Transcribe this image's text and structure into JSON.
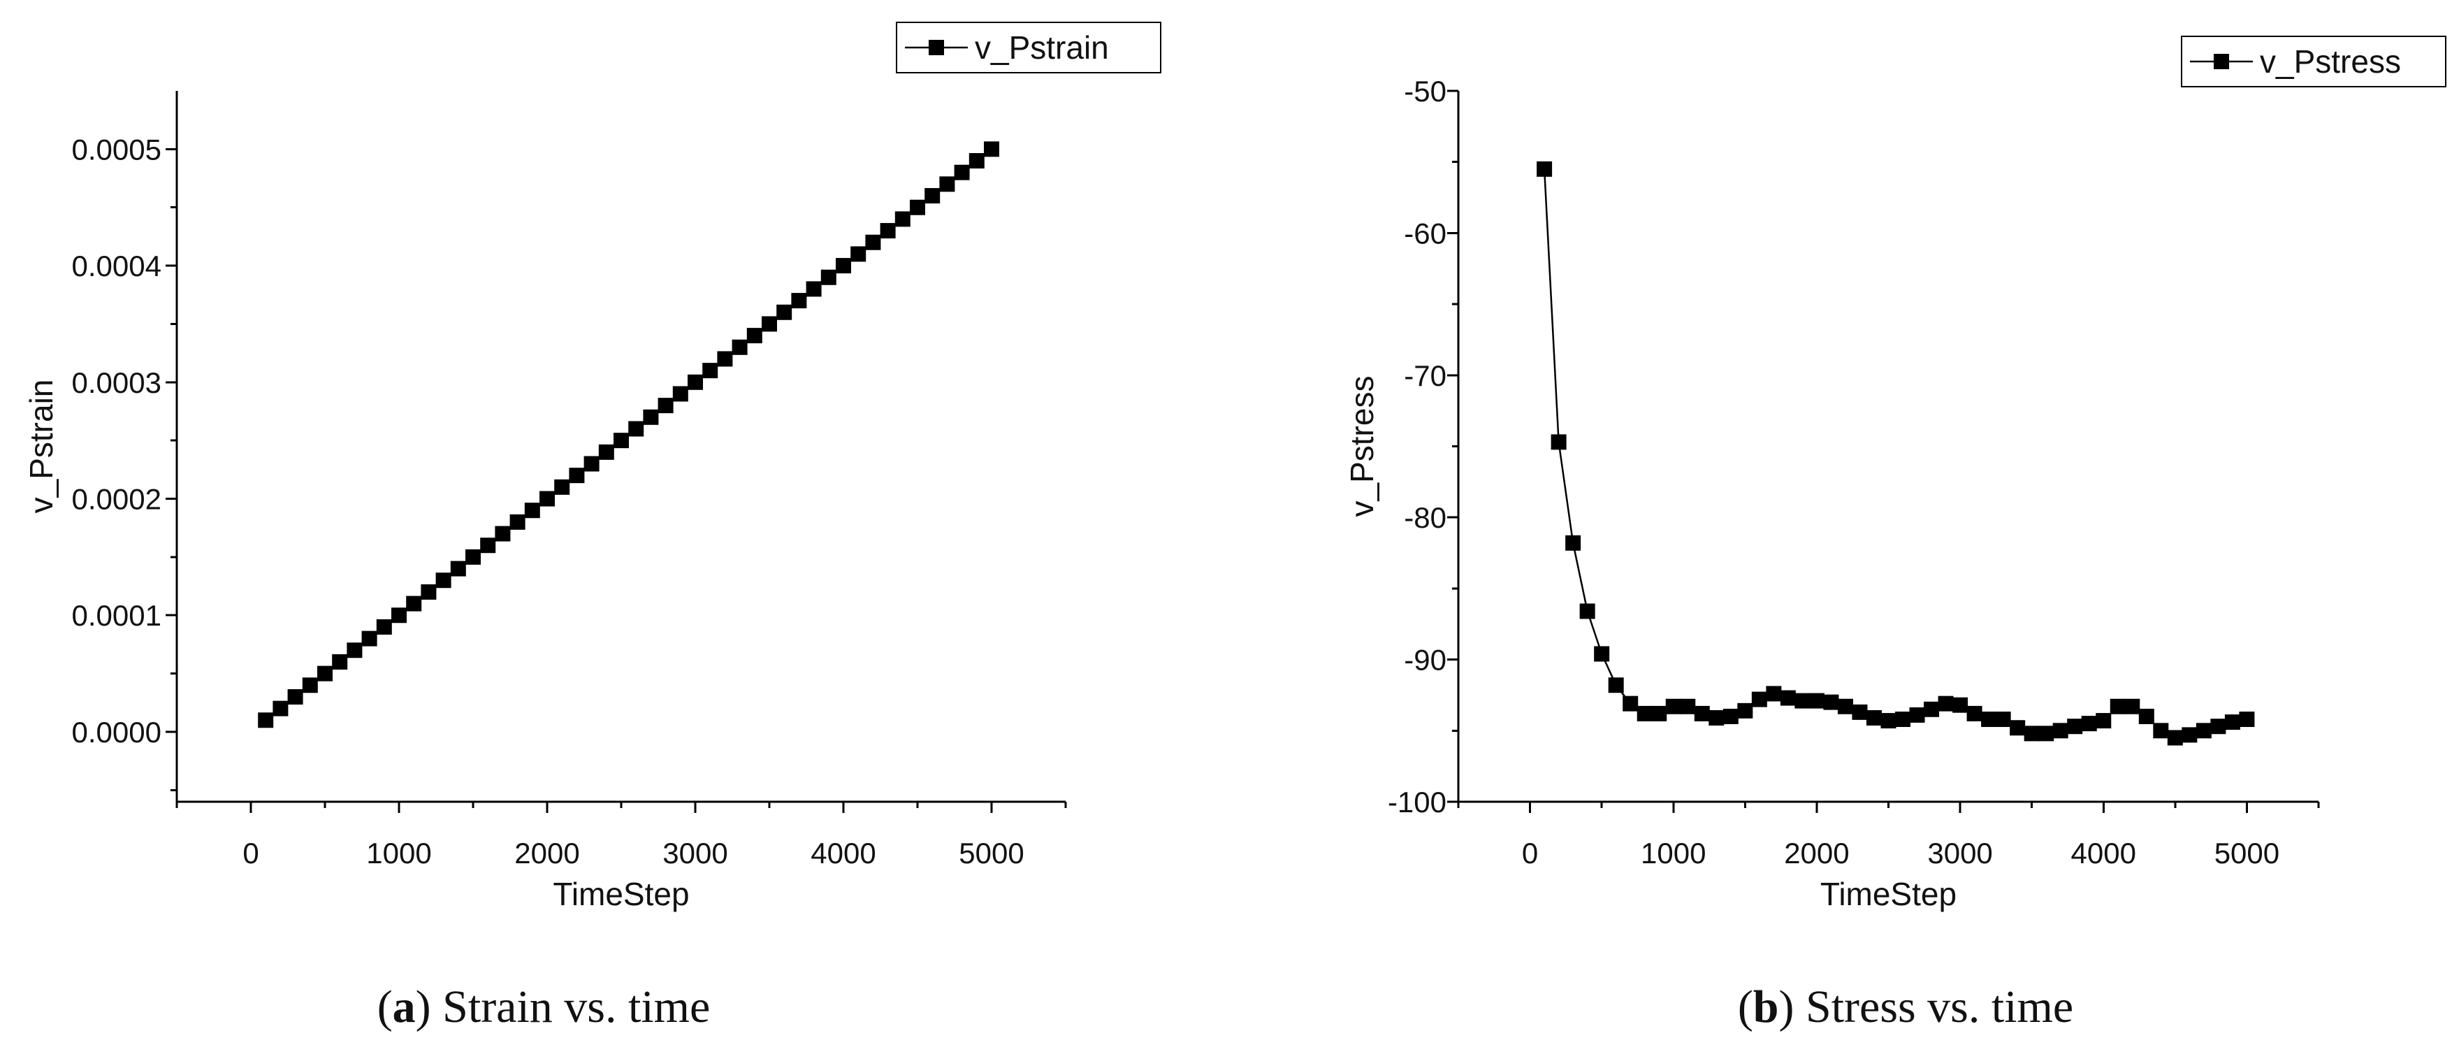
{
  "chart_data": [
    {
      "type": "line",
      "marker": "square",
      "xlabel": "TimeStep",
      "ylabel": "v_Pstrain",
      "legend": "v_Pstrain",
      "legend_position": "top-right",
      "xlim": [
        -500,
        5500
      ],
      "ylim": [
        -6e-05,
        0.00055
      ],
      "xticks": [
        0,
        1000,
        2000,
        3000,
        4000,
        5000
      ],
      "xtick_labels": [
        "0",
        "1000",
        "2000",
        "3000",
        "4000",
        "5000"
      ],
      "yticks": [
        0,
        0.0001,
        0.0002,
        0.0003,
        0.0004,
        0.0005
      ],
      "ytick_labels": [
        "0.0000",
        "0.0001",
        "0.0002",
        "0.0003",
        "0.0004",
        "0.0005"
      ],
      "caption_letter": "a",
      "caption_open": "(",
      "caption_close": ")",
      "caption_text": " Strain vs. time",
      "series": [
        {
          "name": "v_Pstrain",
          "x": [
            100,
            200,
            300,
            400,
            500,
            600,
            700,
            800,
            900,
            1000,
            1100,
            1200,
            1300,
            1400,
            1500,
            1600,
            1700,
            1800,
            1900,
            2000,
            2100,
            2200,
            2300,
            2400,
            2500,
            2600,
            2700,
            2800,
            2900,
            3000,
            3100,
            3200,
            3300,
            3400,
            3500,
            3600,
            3700,
            3800,
            3900,
            4000,
            4100,
            4200,
            4300,
            4400,
            4500,
            4600,
            4700,
            4800,
            4900,
            5000
          ],
          "y": [
            1e-05,
            2e-05,
            3e-05,
            4e-05,
            5e-05,
            6e-05,
            7e-05,
            8e-05,
            9e-05,
            0.0001,
            0.00011,
            0.00012,
            0.00013,
            0.00014,
            0.00015,
            0.00016,
            0.00017,
            0.00018,
            0.00019,
            0.0002,
            0.00021,
            0.00022,
            0.00023,
            0.00024,
            0.00025,
            0.00026,
            0.00027,
            0.00028,
            0.00029,
            0.0003,
            0.00031,
            0.00032,
            0.00033,
            0.00034,
            0.00035,
            0.00036,
            0.00037,
            0.00038,
            0.00039,
            0.0004,
            0.00041,
            0.00042,
            0.00043,
            0.00044,
            0.00045,
            0.00046,
            0.00047,
            0.00048,
            0.00049,
            0.0005
          ]
        }
      ]
    },
    {
      "type": "line",
      "marker": "square",
      "xlabel": "TimeStep",
      "ylabel": "v_Pstress",
      "legend": "v_Pstress",
      "legend_position": "top-right",
      "xlim": [
        -500,
        5500
      ],
      "ylim": [
        -100,
        -50
      ],
      "xticks": [
        0,
        1000,
        2000,
        3000,
        4000,
        5000
      ],
      "xtick_labels": [
        "0",
        "1000",
        "2000",
        "3000",
        "4000",
        "5000"
      ],
      "yticks": [
        -100,
        -90,
        -80,
        -70,
        -60,
        -50
      ],
      "ytick_labels": [
        "-100",
        "-90",
        "-80",
        "-70",
        "-60",
        "-50"
      ],
      "caption_letter": "b",
      "caption_open": "(",
      "caption_close": ")",
      "caption_text": " Stress vs. time",
      "series": [
        {
          "name": "v_Pstress",
          "x": [
            100,
            200,
            300,
            400,
            500,
            600,
            700,
            800,
            900,
            1000,
            1100,
            1200,
            1300,
            1400,
            1500,
            1600,
            1700,
            1800,
            1900,
            2000,
            2100,
            2200,
            2300,
            2400,
            2500,
            2600,
            2700,
            2800,
            2900,
            3000,
            3100,
            3200,
            3300,
            3400,
            3500,
            3600,
            3700,
            3800,
            3900,
            4000,
            4100,
            4200,
            4300,
            4400,
            4500,
            4600,
            4700,
            4800,
            4900,
            5000
          ],
          "y": [
            -55.5,
            -74.7,
            -81.8,
            -86.6,
            -89.6,
            -91.8,
            -93.1,
            -93.8,
            -93.8,
            -93.3,
            -93.3,
            -93.8,
            -94.1,
            -94.0,
            -93.6,
            -92.8,
            -92.4,
            -92.7,
            -92.9,
            -92.9,
            -93.0,
            -93.3,
            -93.7,
            -94.1,
            -94.3,
            -94.2,
            -93.9,
            -93.5,
            -93.1,
            -93.2,
            -93.8,
            -94.2,
            -94.2,
            -94.8,
            -95.2,
            -95.2,
            -95.0,
            -94.7,
            -94.5,
            -94.3,
            -93.3,
            -93.3,
            -94.0,
            -95.0,
            -95.5,
            -95.3,
            -95.0,
            -94.7,
            -94.4,
            -94.2
          ]
        }
      ]
    }
  ]
}
